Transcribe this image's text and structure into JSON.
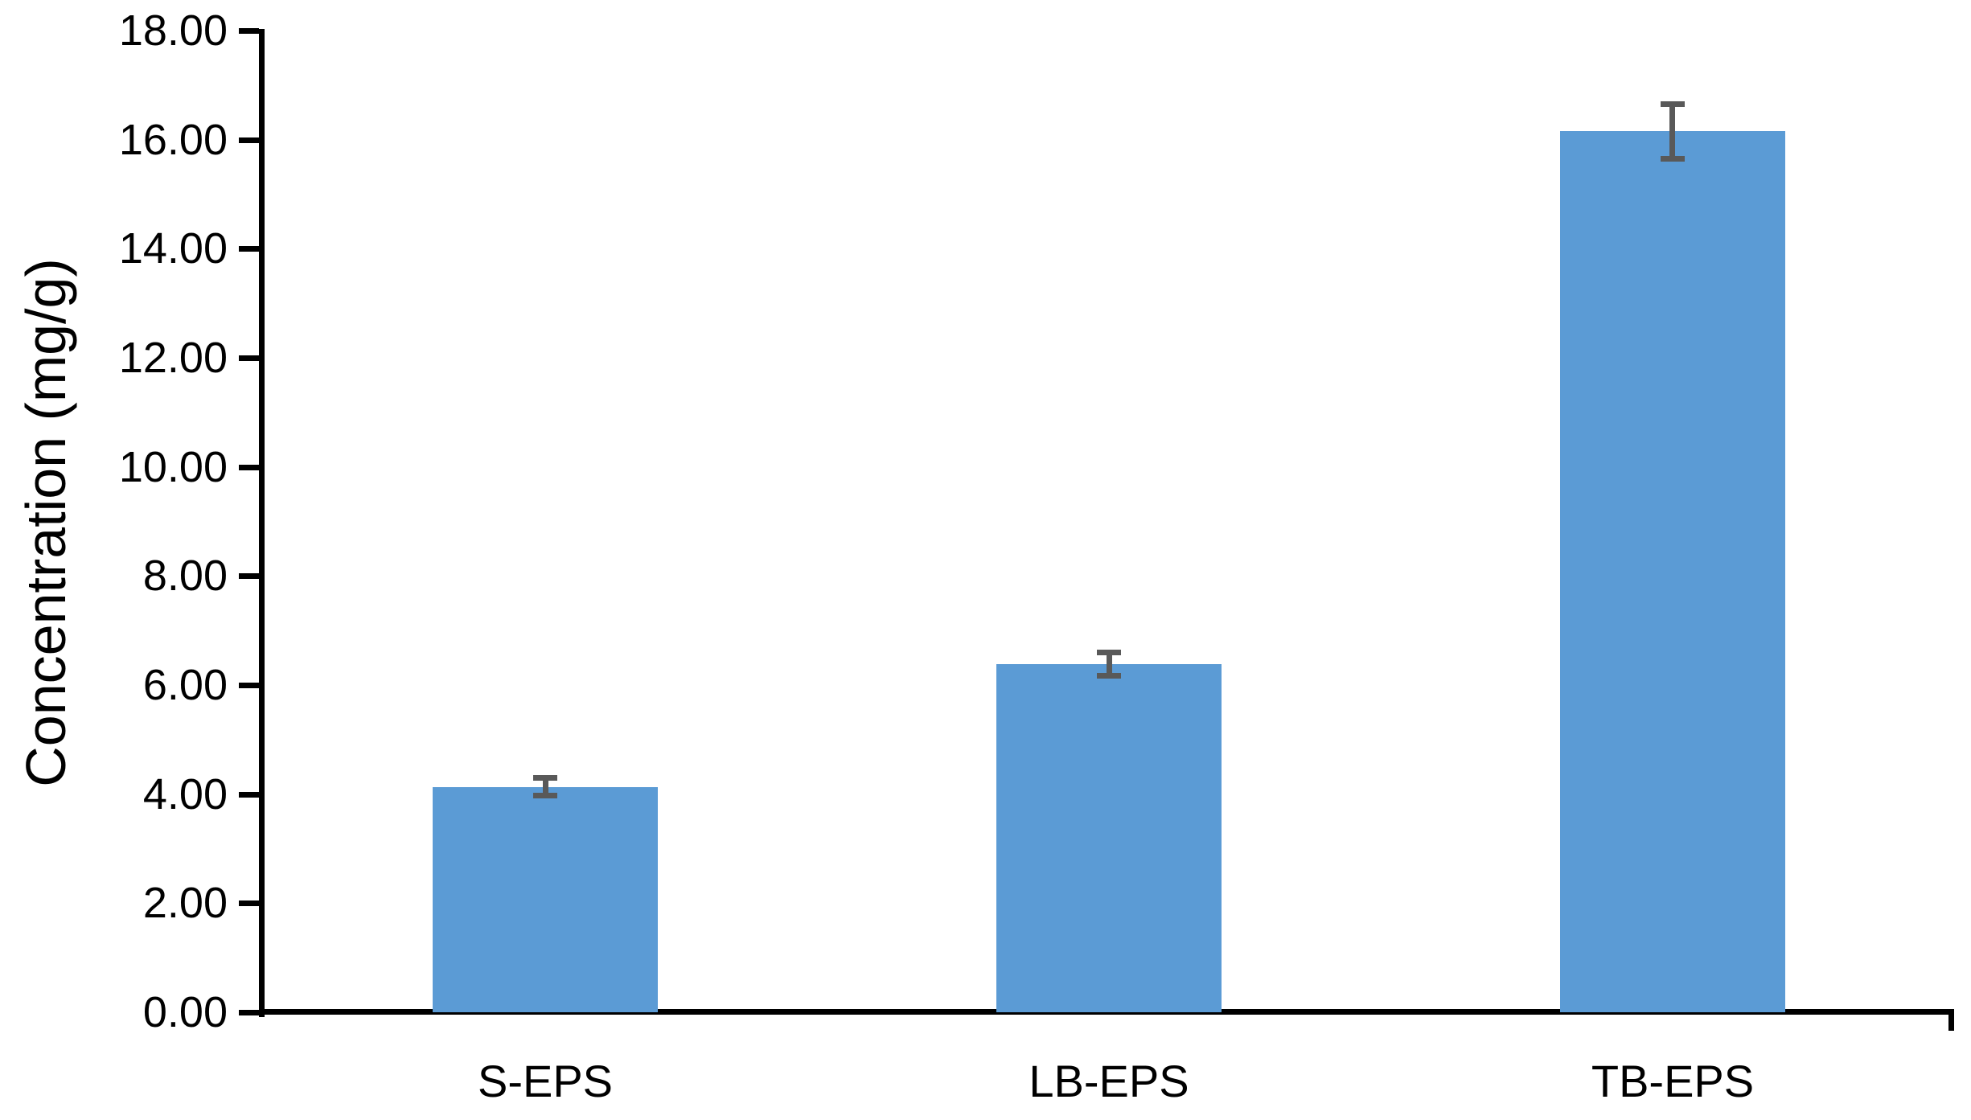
{
  "chart_data": {
    "type": "bar",
    "title": "",
    "ylabel": "Concentration (mg/g)",
    "xlabel": "",
    "categories": [
      "S-EPS",
      "LB-EPS",
      "TB-EPS"
    ],
    "values": [
      4.13,
      6.38,
      16.15
    ],
    "error_bars": [
      0.17,
      0.22,
      0.51
    ],
    "ylim": [
      0,
      18
    ],
    "ytick_step": 2,
    "ytick_labels": [
      "0.00",
      "2.00",
      "4.00",
      "6.00",
      "8.00",
      "10.00",
      "12.00",
      "14.00",
      "16.00",
      "18.00"
    ],
    "grid": false,
    "legend": "none",
    "bar_color": "#5B9BD5",
    "error_bar_color": "#595959",
    "axis_color": "#000000",
    "text_color": "#000000",
    "background_color": "#FFFFFF"
  }
}
